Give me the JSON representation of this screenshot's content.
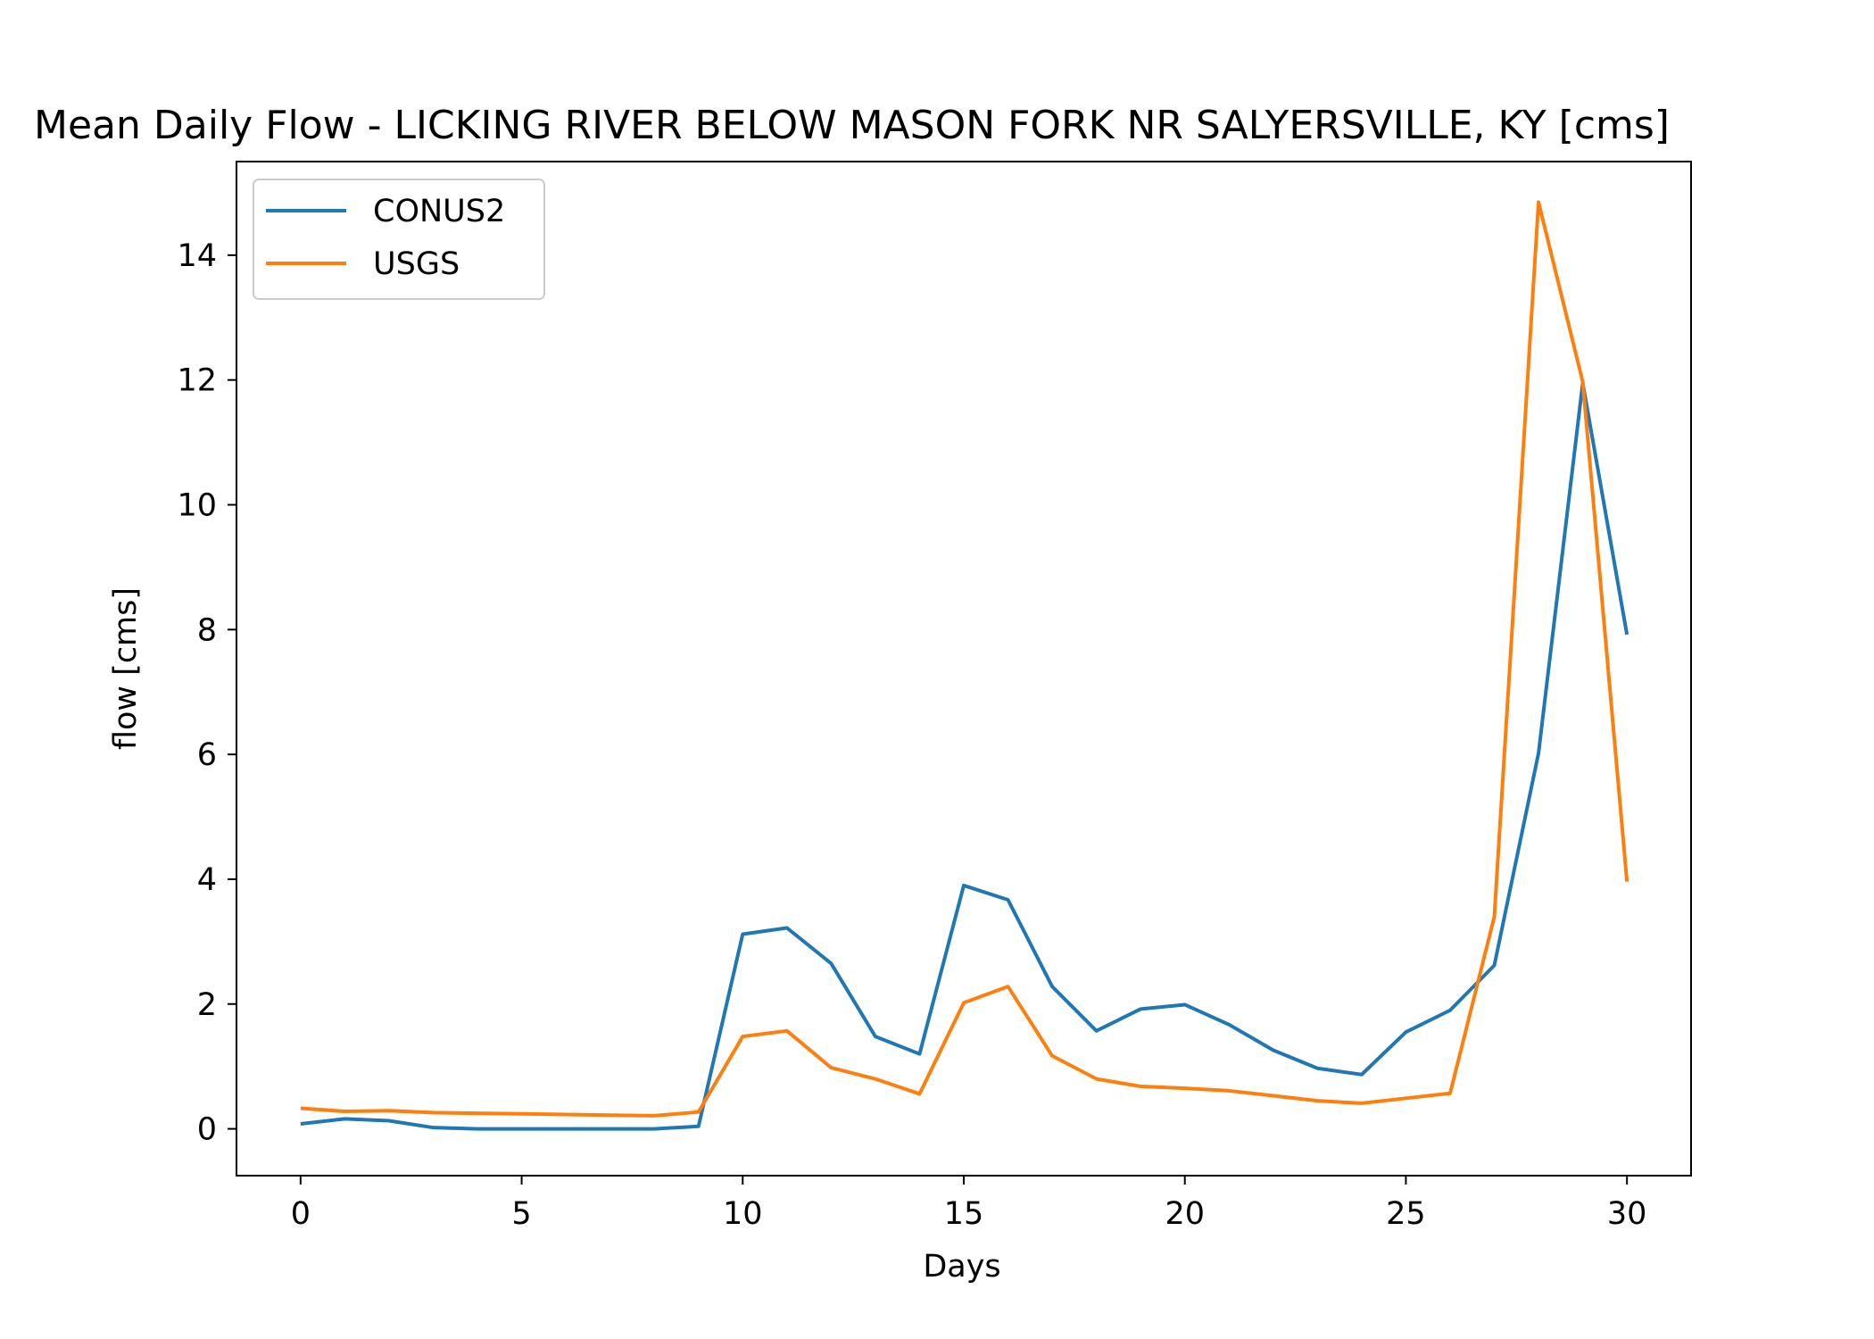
{
  "chart_data": {
    "type": "line",
    "title": "Mean Daily Flow - LICKING RIVER BELOW MASON FORK NR SALYERSVILLE, KY [cms]",
    "xlabel": "Days",
    "ylabel": "flow [cms]",
    "xlim": [
      -1.45,
      31.45
    ],
    "ylim": [
      -0.75,
      15.5
    ],
    "xticks": [
      0,
      5,
      10,
      15,
      20,
      25,
      30
    ],
    "yticks": [
      0,
      2,
      4,
      6,
      8,
      10,
      12,
      14
    ],
    "grid": false,
    "legend": "upper left",
    "x": [
      0,
      1,
      2,
      3,
      4,
      5,
      6,
      7,
      8,
      9,
      10,
      11,
      12,
      13,
      14,
      15,
      16,
      17,
      18,
      19,
      20,
      21,
      22,
      23,
      24,
      25,
      26,
      27,
      28,
      29,
      30
    ],
    "series": [
      {
        "name": "CONUS2",
        "color": "#1f77b4",
        "values": [
          0.08,
          0.16,
          0.13,
          0.02,
          0.0,
          0.0,
          0.0,
          0.0,
          0.0,
          0.04,
          3.12,
          3.22,
          2.65,
          1.48,
          1.2,
          3.9,
          3.67,
          2.28,
          1.57,
          1.92,
          1.99,
          1.67,
          1.26,
          0.97,
          0.87,
          1.55,
          1.9,
          2.62,
          6.02,
          11.95,
          7.92
        ]
      },
      {
        "name": "USGS",
        "color": "#ff7f0e",
        "values": [
          0.33,
          0.28,
          0.29,
          0.26,
          0.25,
          0.24,
          0.23,
          0.22,
          0.21,
          0.27,
          1.48,
          1.57,
          0.98,
          0.8,
          0.56,
          2.02,
          2.28,
          1.17,
          0.8,
          0.68,
          0.65,
          0.61,
          0.53,
          0.45,
          0.41,
          0.49,
          0.57,
          3.4,
          14.85,
          11.97,
          3.96
        ]
      }
    ]
  }
}
